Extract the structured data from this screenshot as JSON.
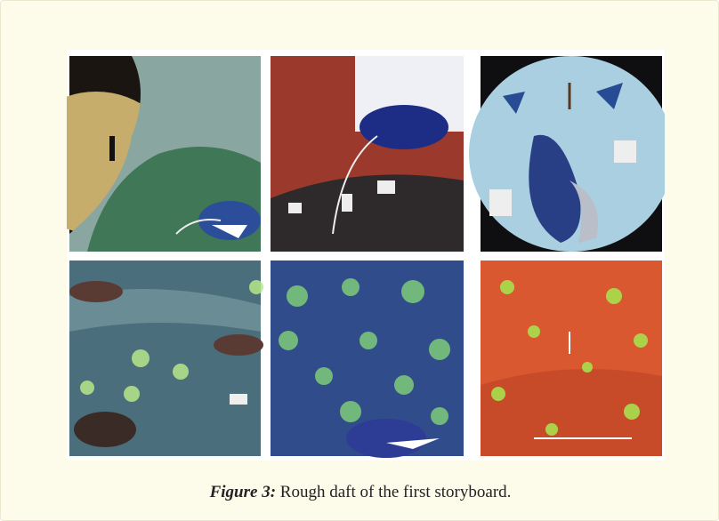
{
  "figure": {
    "label": "Figure 3:",
    "caption": "Rough daft of the first storyboard."
  }
}
